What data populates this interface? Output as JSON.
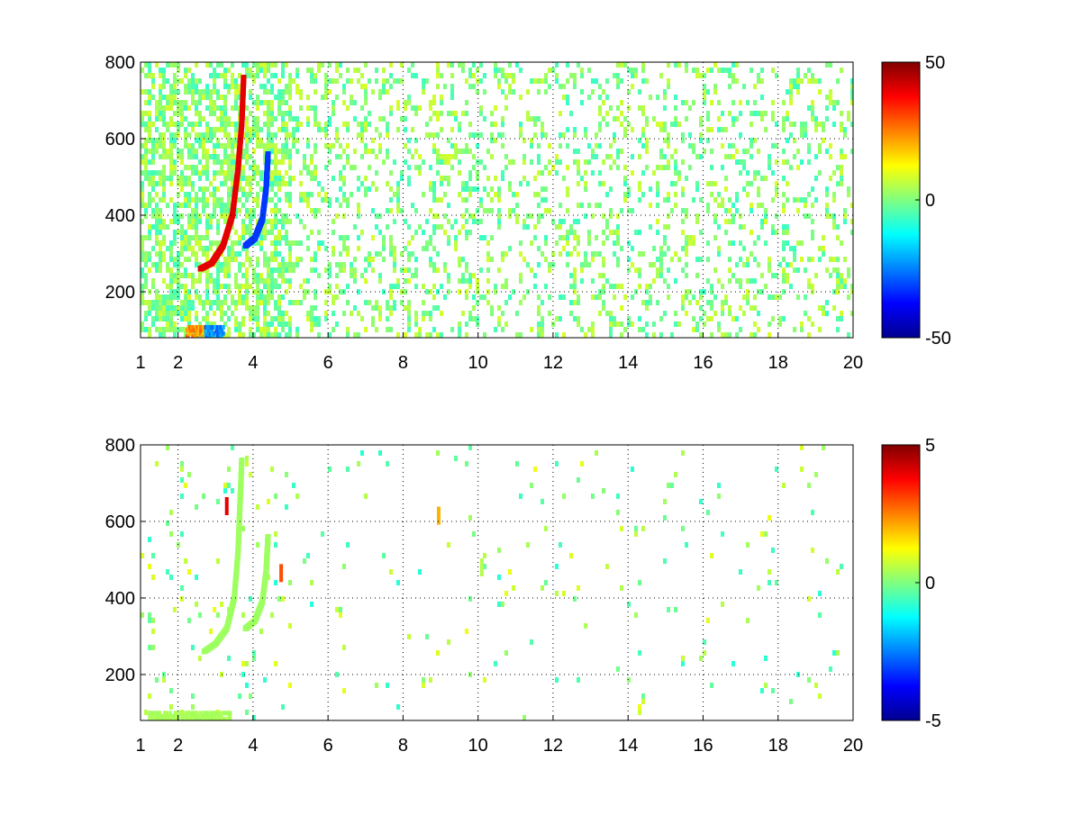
{
  "chart_data": [
    {
      "type": "heatmap",
      "title": "",
      "xlabel": "",
      "ylabel": "",
      "xlim": [
        1,
        20
      ],
      "ylim": [
        80,
        800
      ],
      "xticks": [
        1,
        2,
        4,
        6,
        8,
        10,
        12,
        14,
        16,
        18,
        20
      ],
      "yticks": [
        200,
        400,
        600,
        800
      ],
      "grid": true,
      "colormap": "jet",
      "clim": [
        -50,
        50
      ],
      "colorbar_ticks": [
        50,
        0,
        -50
      ],
      "features": [
        {
          "kind": "curve",
          "value": 40,
          "points": [
            [
              2.6,
              260
            ],
            [
              2.9,
              275
            ],
            [
              3.2,
              320
            ],
            [
              3.45,
              400
            ],
            [
              3.6,
              520
            ],
            [
              3.7,
              640
            ],
            [
              3.75,
              760
            ]
          ]
        },
        {
          "kind": "curve",
          "value": -32,
          "points": [
            [
              3.8,
              320
            ],
            [
              4.05,
              340
            ],
            [
              4.25,
              390
            ],
            [
              4.35,
              470
            ],
            [
              4.4,
              560
            ]
          ]
        },
        {
          "kind": "band",
          "value": 30,
          "x": [
            2.2,
            2.9
          ],
          "y": [
            82,
            110
          ]
        },
        {
          "kind": "band",
          "value": -30,
          "x": [
            2.7,
            3.2
          ],
          "y": [
            82,
            110
          ]
        }
      ],
      "noise_scale": 8,
      "noise_density": 0.25
    },
    {
      "type": "heatmap",
      "title": "",
      "xlabel": "",
      "ylabel": "",
      "xlim": [
        1,
        20
      ],
      "ylim": [
        80,
        800
      ],
      "xticks": [
        1,
        2,
        4,
        6,
        8,
        10,
        12,
        14,
        16,
        18,
        20
      ],
      "yticks": [
        200,
        400,
        600,
        800
      ],
      "grid": true,
      "colormap": "jet",
      "clim": [
        -5,
        5
      ],
      "colorbar_ticks": [
        5,
        0,
        -5
      ],
      "features": [
        {
          "kind": "curve",
          "value": 0.3,
          "points": [
            [
              2.7,
              260
            ],
            [
              3.0,
              280
            ],
            [
              3.3,
              320
            ],
            [
              3.5,
              400
            ],
            [
              3.6,
              520
            ],
            [
              3.65,
              640
            ],
            [
              3.7,
              760
            ]
          ]
        },
        {
          "kind": "curve",
          "value": 0.3,
          "points": [
            [
              3.8,
              320
            ],
            [
              4.05,
              340
            ],
            [
              4.25,
              390
            ],
            [
              4.35,
              470
            ],
            [
              4.4,
              560
            ]
          ]
        },
        {
          "kind": "band",
          "value": 0.5,
          "x": [
            1.2,
            3.4
          ],
          "y": [
            82,
            105
          ]
        },
        {
          "kind": "spot",
          "value": 2,
          "x": 8.95,
          "y": 615
        },
        {
          "kind": "spot",
          "value": 3,
          "x": 4.75,
          "y": 465
        },
        {
          "kind": "spot",
          "value": 0.5,
          "x": 10.1,
          "y": 480
        },
        {
          "kind": "spot",
          "value": 4,
          "x": 3.3,
          "y": 640
        }
      ],
      "noise_scale": 1,
      "noise_density": 0.02
    }
  ]
}
